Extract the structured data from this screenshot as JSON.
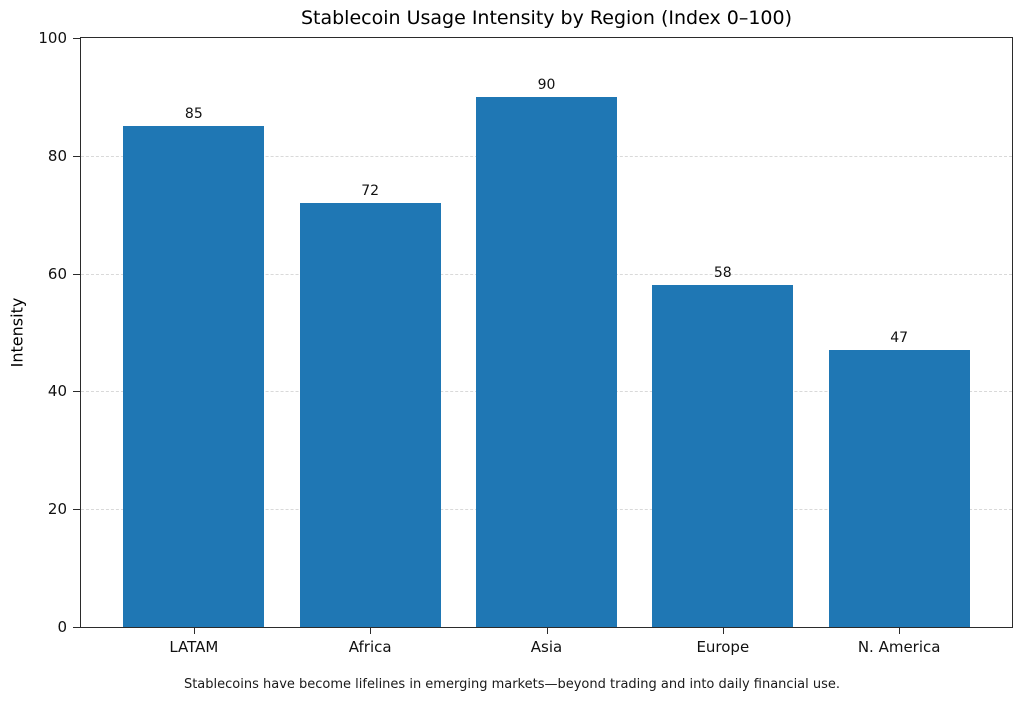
{
  "figure": {
    "caption": "Stablecoins have become lifelines in emerging markets—beyond trading and into daily financial use."
  },
  "chart_data": {
    "type": "bar",
    "title": "Stablecoin Usage Intensity by Region (Index 0–100)",
    "categories": [
      "LATAM",
      "Africa",
      "Asia",
      "Europe",
      "N. America"
    ],
    "values": [
      85,
      72,
      90,
      58,
      47
    ],
    "bar_labels": [
      "85",
      "72",
      "90",
      "58",
      "47"
    ],
    "xlabel": "",
    "ylabel": "Intensity",
    "ylim": [
      0,
      100
    ],
    "yticks": [
      0,
      20,
      40,
      60,
      80,
      100
    ],
    "grid": "horizontal-dashed-at-yticks",
    "legend_position": "none",
    "bar_color": "#1f77b4",
    "grid_color": "#d9d9d9",
    "spine_color": "#2b2b2b",
    "text_color": "#111111",
    "background_color": "#ffffff"
  }
}
